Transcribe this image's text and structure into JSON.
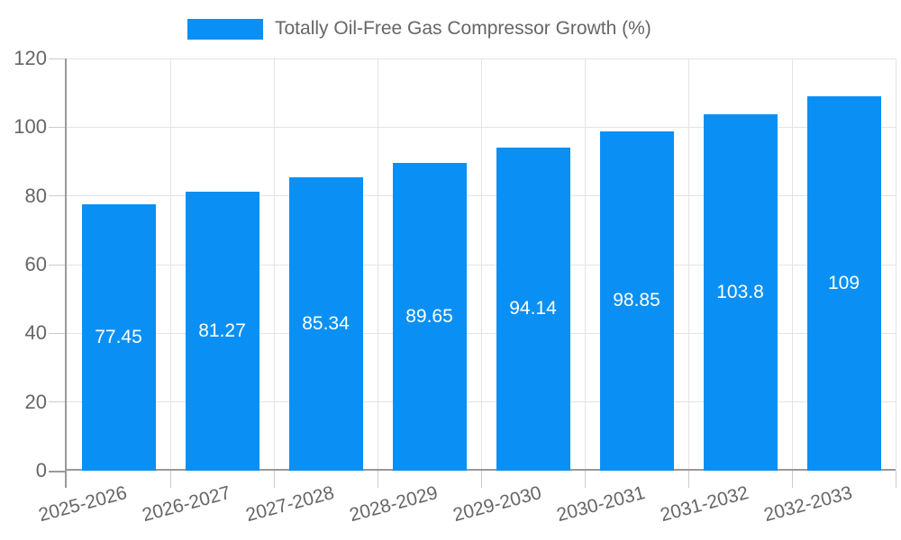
{
  "legend": {
    "label": "Totally Oil-Free Gas Compressor Growth (%)"
  },
  "chart_data": {
    "type": "bar",
    "title": "Totally Oil-Free Gas Compressor Growth (%)",
    "categories": [
      "2025-2026",
      "2026-2027",
      "2027-2028",
      "2028-2029",
      "2029-2030",
      "2030-2031",
      "2031-2032",
      "2032-2033"
    ],
    "values": [
      77.45,
      81.27,
      85.34,
      89.65,
      94.14,
      98.85,
      103.8,
      109
    ],
    "value_labels": [
      "77.45",
      "81.27",
      "85.34",
      "89.65",
      "94.14",
      "98.85",
      "103.8",
      "109"
    ],
    "xlabel": "",
    "ylabel": "",
    "ylim": [
      0,
      120
    ],
    "yticks": [
      0,
      20,
      40,
      60,
      80,
      100,
      120
    ],
    "grid": true,
    "legend_position": "top",
    "x_label_rotation_deg": -15
  },
  "colors": {
    "bar": "#0a90f4",
    "value_label": "#ffffff",
    "axis_text": "#666666",
    "grid_line": "#e4e4e4",
    "tick_line": "#cccccc",
    "axis_line": "#999999",
    "background": "#ffffff"
  }
}
